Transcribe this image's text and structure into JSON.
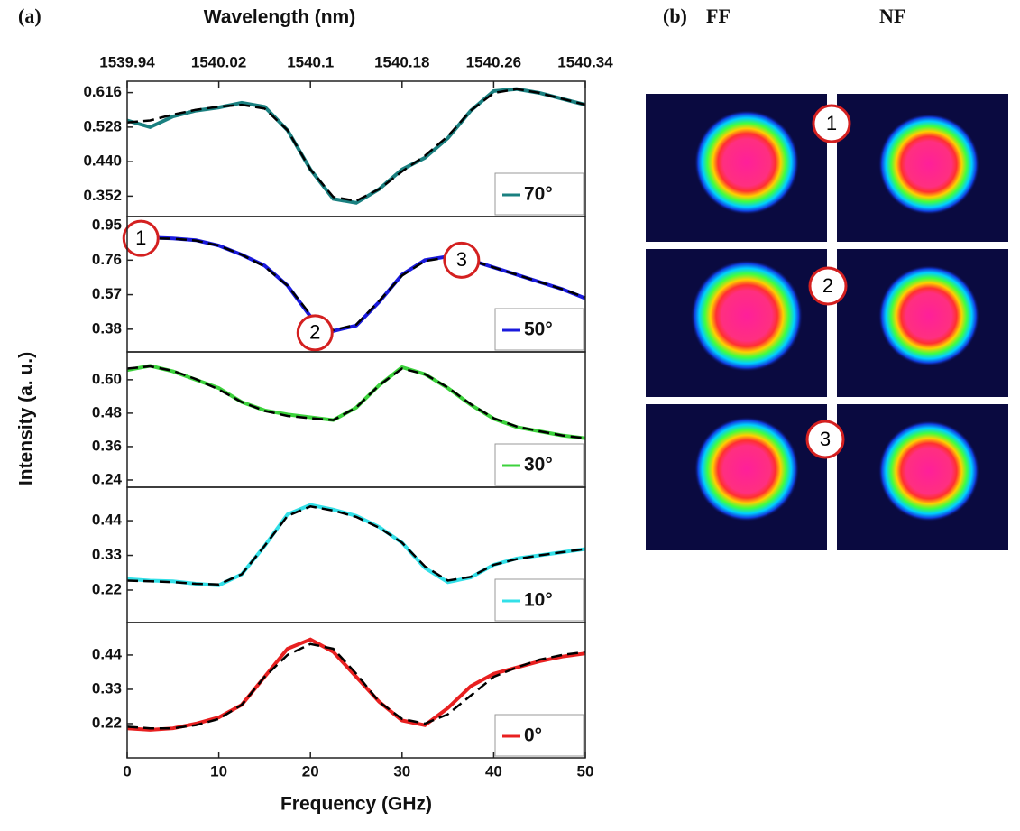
{
  "chart_data": {
    "type": "line",
    "panel_label": "(a)",
    "xlabel": "Frequency (GHz)",
    "x2label": "Wavelength (nm)",
    "ylabel": "Intensity (a. u.)",
    "xlim": [
      0,
      50
    ],
    "xticks": [
      0,
      10,
      20,
      30,
      40,
      50
    ],
    "x2lim": [
      1539.94,
      1540.34
    ],
    "x2ticks": [
      1539.94,
      1540.02,
      1540.1,
      1540.18,
      1540.26,
      1540.34
    ],
    "legend": "lower right",
    "x": [
      0,
      2.5,
      5,
      7.5,
      10,
      12.5,
      15,
      17.5,
      20,
      22.5,
      25,
      27.5,
      30,
      32.5,
      35,
      37.5,
      40,
      42.5,
      45,
      47.5,
      50
    ],
    "panels": [
      {
        "ylim": [
          0.3,
          0.645
        ],
        "yticks": [
          {
            "value": 0.352,
            "label": "0.352"
          },
          {
            "value": 0.44,
            "label": "0.440"
          },
          0.528,
          0.616
        ],
        "series": [
          {
            "name": "70°",
            "color": "#1a8080",
            "values": [
              0.545,
              0.528,
              0.555,
              0.57,
              0.578,
              0.59,
              0.58,
              0.52,
              0.42,
              0.345,
              0.335,
              0.37,
              0.42,
              0.45,
              0.5,
              0.57,
              0.62,
              0.625,
              0.615,
              0.6,
              0.585
            ]
          },
          {
            "color": "#000000",
            "dashed": true,
            "values": [
              0.54,
              0.545,
              0.56,
              0.572,
              0.58,
              0.585,
              0.575,
              0.52,
              0.42,
              0.35,
              0.34,
              0.37,
              0.415,
              0.455,
              0.505,
              0.57,
              0.615,
              0.625,
              0.615,
              0.6,
              0.585
            ]
          }
        ]
      },
      {
        "ylim": [
          0.255,
          1.0
        ],
        "yticks": [
          0.38,
          0.57,
          0.76,
          0.95
        ],
        "annotations": [
          {
            "text": "1",
            "x": 1.5,
            "y": 0.88
          },
          {
            "text": "2",
            "x": 20.5,
            "y": 0.36
          },
          {
            "text": "3",
            "x": 36.5,
            "y": 0.76
          }
        ],
        "series": [
          {
            "name": "50°",
            "color": "#1a1add",
            "values": [
              0.88,
              0.885,
              0.88,
              0.87,
              0.84,
              0.79,
              0.73,
              0.62,
              0.45,
              0.37,
              0.4,
              0.53,
              0.68,
              0.76,
              0.78,
              0.76,
              0.72,
              0.68,
              0.64,
              0.6,
              0.55
            ]
          },
          {
            "color": "#000000",
            "dashed": true,
            "values": [
              0.875,
              0.88,
              0.878,
              0.868,
              0.84,
              0.79,
              0.725,
              0.62,
              0.46,
              0.375,
              0.405,
              0.535,
              0.675,
              0.755,
              0.775,
              0.76,
              0.72,
              0.68,
              0.64,
              0.6,
              0.555
            ]
          }
        ]
      },
      {
        "ylim": [
          0.214,
          0.7
        ],
        "yticks": [
          0.24,
          0.36,
          0.48,
          {
            "value": 0.6,
            "label": "0.60"
          }
        ],
        "series": [
          {
            "name": "30°",
            "color": "#3cd23c",
            "values": [
              0.635,
              0.65,
              0.63,
              0.6,
              0.57,
              0.52,
              0.49,
              0.475,
              0.465,
              0.455,
              0.5,
              0.58,
              0.645,
              0.62,
              0.57,
              0.51,
              0.46,
              0.43,
              0.415,
              0.4,
              0.39
            ]
          },
          {
            "color": "#000000",
            "dashed": true,
            "values": [
              0.64,
              0.648,
              0.632,
              0.602,
              0.565,
              0.52,
              0.488,
              0.47,
              0.462,
              0.455,
              0.5,
              0.58,
              0.64,
              0.62,
              0.572,
              0.512,
              0.462,
              0.432,
              0.415,
              0.4,
              0.39
            ]
          }
        ]
      },
      {
        "ylim": [
          0.117,
          0.546
        ],
        "yticks": [
          0.22,
          0.33,
          0.44
        ],
        "series": [
          {
            "name": "10°",
            "color": "#33e0e8",
            "values": [
              0.255,
              0.25,
              0.248,
              0.24,
              0.235,
              0.27,
              0.36,
              0.46,
              0.49,
              0.475,
              0.455,
              0.42,
              0.37,
              0.29,
              0.245,
              0.26,
              0.3,
              0.32,
              0.33,
              0.34,
              0.35
            ]
          },
          {
            "color": "#000000",
            "dashed": true,
            "values": [
              0.25,
              0.248,
              0.245,
              0.24,
              0.238,
              0.27,
              0.36,
              0.455,
              0.485,
              0.472,
              0.452,
              0.418,
              0.37,
              0.295,
              0.25,
              0.262,
              0.3,
              0.318,
              0.33,
              0.34,
              0.35
            ]
          }
        ]
      },
      {
        "ylim": [
          0.11,
          0.544
        ],
        "yticks": [
          0.22,
          0.33,
          0.44
        ],
        "series": [
          {
            "name": "0°",
            "color": "#e82020",
            "values": [
              0.205,
              0.2,
              0.205,
              0.22,
              0.24,
              0.28,
              0.37,
              0.46,
              0.49,
              0.45,
              0.37,
              0.29,
              0.23,
              0.215,
              0.27,
              0.34,
              0.38,
              0.4,
              0.42,
              0.435,
              0.445
            ]
          },
          {
            "color": "#000000",
            "dashed": true,
            "values": [
              0.21,
              0.205,
              0.205,
              0.215,
              0.235,
              0.28,
              0.37,
              0.44,
              0.475,
              0.46,
              0.38,
              0.29,
              0.235,
              0.22,
              0.25,
              0.31,
              0.37,
              0.4,
              0.425,
              0.44,
              0.45
            ]
          }
        ]
      }
    ]
  },
  "images": {
    "panel_label": "(b)",
    "columns": [
      "FF",
      "NF"
    ],
    "rows": [
      "1",
      "2",
      "3"
    ]
  }
}
